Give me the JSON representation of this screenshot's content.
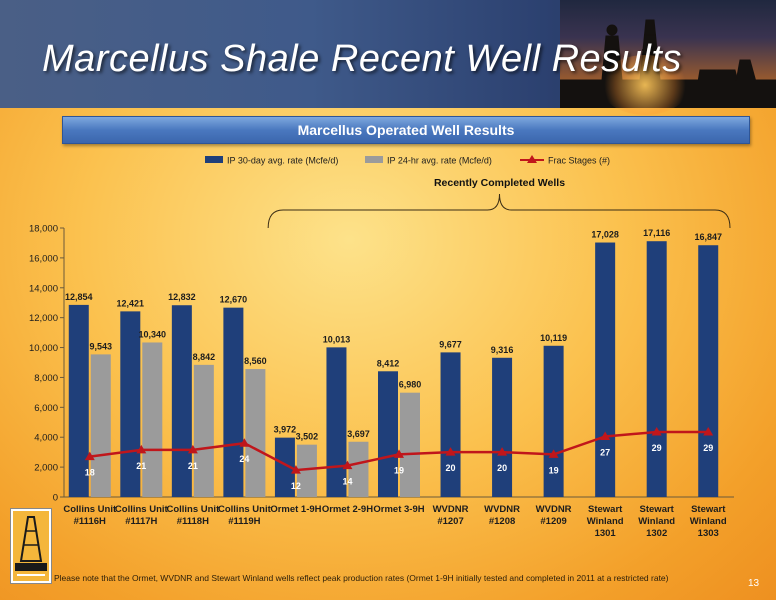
{
  "slide": {
    "title": "Marcellus Shale Recent Well Results",
    "page_number": "13",
    "footnote": "Please note that the Ormet, WVDNR and Stewart Winland wells reflect peak production rates (Ormet 1-9H initially tested and completed in 2011 at a restricted rate)"
  },
  "colors": {
    "series_ip30": "#1f3f7a",
    "series_ip24": "#9b9b9b",
    "series_frac": "#c0161b",
    "frac_label": "#ffffff"
  },
  "chart_data": {
    "type": "bar",
    "title": "Marcellus Operated Well Results",
    "bracket_label": "Recently Completed Wells",
    "categories": [
      "Collins Unit\n#1116H",
      "Collins Unit\n#1117H",
      "Collins Unit\n#1118H",
      "Collins Unit\n#1119H",
      "Ormet 1-9H",
      "Ormet 2-9H",
      "Ormet 3-9H",
      "WVDNR\n#1207",
      "WVDNR\n#1208",
      "WVDNR\n#1209",
      "Stewart\nWinland\n1301",
      "Stewart\nWinland\n1302",
      "Stewart\nWinland\n1303"
    ],
    "series": [
      {
        "name": "IP 30-day avg. rate (Mcfe/d)",
        "kind": "bar",
        "values": [
          12854,
          12421,
          12832,
          12670,
          3972,
          10013,
          8412,
          9677,
          9316,
          10119,
          17028,
          17116,
          16847
        ],
        "labels": [
          "12,854",
          "12,421",
          "12,832",
          "12,670",
          "3,972",
          "10,013",
          "8,412",
          "9,677",
          "9,316",
          "10,119",
          "17,028",
          "17,116",
          "16,847"
        ]
      },
      {
        "name": "IP 24-hr avg. rate (Mcfe/d)",
        "kind": "bar",
        "values": [
          9543,
          10340,
          8842,
          8560,
          3502,
          3697,
          6980,
          null,
          null,
          null,
          null,
          null,
          null
        ],
        "labels": [
          "9,543",
          "10,340",
          "8,842",
          "8,560",
          "3,502",
          "3,697",
          "6,980",
          null,
          null,
          null,
          null,
          null,
          null
        ]
      },
      {
        "name": "Frac Stages (#)",
        "kind": "line",
        "values": [
          18,
          21,
          21,
          24,
          12,
          14,
          19,
          20,
          20,
          19,
          27,
          29,
          29
        ],
        "labels": [
          "18",
          "21",
          "21",
          "24",
          "12",
          "14",
          "19",
          "20",
          "20",
          "19",
          "27",
          "29",
          "29"
        ]
      }
    ],
    "ylim": [
      0,
      18000
    ],
    "yticks": [
      "0",
      "2,000",
      "4,000",
      "6,000",
      "8,000",
      "10,000",
      "12,000",
      "14,000",
      "16,000",
      "18,000"
    ],
    "legend_position": "top",
    "grid": false
  }
}
